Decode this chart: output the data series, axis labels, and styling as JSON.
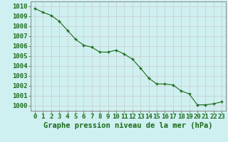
{
  "x": [
    0,
    1,
    2,
    3,
    4,
    5,
    6,
    7,
    8,
    9,
    10,
    11,
    12,
    13,
    14,
    15,
    16,
    17,
    18,
    19,
    20,
    21,
    22,
    23
  ],
  "y": [
    1009.8,
    1009.4,
    1009.1,
    1008.5,
    1007.6,
    1006.7,
    1006.1,
    1005.9,
    1005.4,
    1005.4,
    1005.6,
    1005.2,
    1004.7,
    1003.8,
    1002.8,
    1002.2,
    1002.2,
    1002.1,
    1001.5,
    1001.2,
    1000.1,
    1000.1,
    1000.2,
    1000.4
  ],
  "ylim": [
    999.5,
    1010.5
  ],
  "xlim": [
    -0.5,
    23.5
  ],
  "yticks": [
    1000,
    1001,
    1002,
    1003,
    1004,
    1005,
    1006,
    1007,
    1008,
    1009,
    1010
  ],
  "xticks": [
    0,
    1,
    2,
    3,
    4,
    5,
    6,
    7,
    8,
    9,
    10,
    11,
    12,
    13,
    14,
    15,
    16,
    17,
    18,
    19,
    20,
    21,
    22,
    23
  ],
  "xlabel": "Graphe pression niveau de la mer (hPa)",
  "line_color": "#1a6b1a",
  "marker_color": "#1a6b1a",
  "bg_color": "#cff0f0",
  "grid_color": "#c8c8c8",
  "text_color": "#1a6b1a",
  "label_color": "#1a6b1a",
  "font_size": 6.5,
  "xlabel_fontsize": 7.5
}
